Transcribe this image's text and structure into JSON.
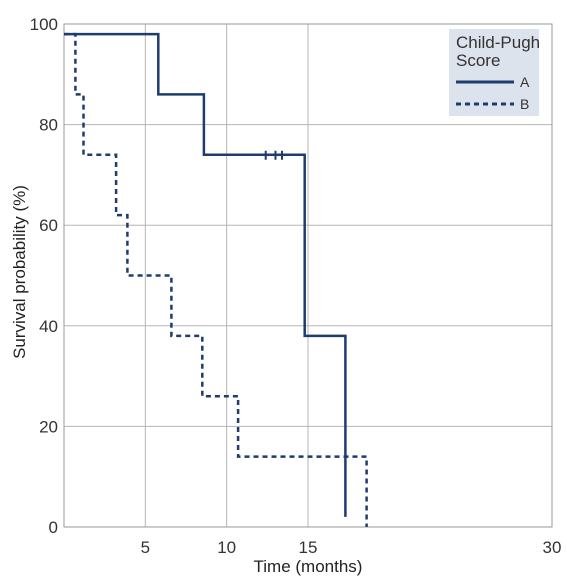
{
  "chart_data": {
    "type": "line",
    "subtype": "kaplan-meier step curve",
    "xlabel": "Time (months)",
    "ylabel": "Survival probability (%)",
    "xlim": [
      0,
      30
    ],
    "ylim": [
      0,
      100
    ],
    "xticks": [
      5,
      10,
      15,
      30
    ],
    "yticks": [
      0,
      20,
      40,
      60,
      80,
      100
    ],
    "grid": true,
    "legend": {
      "title_line1": "Child-Pugh",
      "title_line2": "Score",
      "placement": "top-right"
    },
    "series": [
      {
        "name": "A",
        "color": "#1f3c6e",
        "style": "solid",
        "x": [
          0,
          5.8,
          5.8,
          8.6,
          8.6,
          14.8,
          14.8,
          17.3,
          17.3
        ],
        "y": [
          98,
          98,
          86,
          86,
          74,
          74,
          38,
          38,
          2
        ],
        "censored_x": [
          12.4,
          13.0,
          13.4
        ],
        "censored_y": 74
      },
      {
        "name": "B",
        "color": "#1f3c6e",
        "style": "dashed",
        "x": [
          0,
          0.7,
          0.7,
          1.2,
          1.2,
          3.2,
          3.2,
          3.9,
          3.9,
          6.6,
          6.6,
          8.5,
          8.5,
          10.7,
          10.7,
          18.6,
          18.6
        ],
        "y": [
          98,
          98,
          86,
          86,
          74,
          74,
          62,
          62,
          50,
          50,
          38,
          38,
          26,
          26,
          14,
          14,
          0
        ]
      }
    ]
  }
}
